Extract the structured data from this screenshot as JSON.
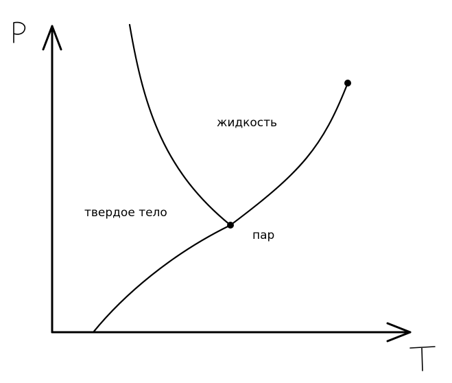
{
  "diagram": {
    "axes": {
      "y_label": "P",
      "x_label": "T"
    },
    "regions": {
      "liquid": "жидкость",
      "solid": "твердое тело",
      "vapor": "пар"
    },
    "points": {
      "triple_point": "triple-point",
      "critical_point": "critical-point"
    },
    "line_color": "#000000",
    "background_color": "#ffffff"
  }
}
